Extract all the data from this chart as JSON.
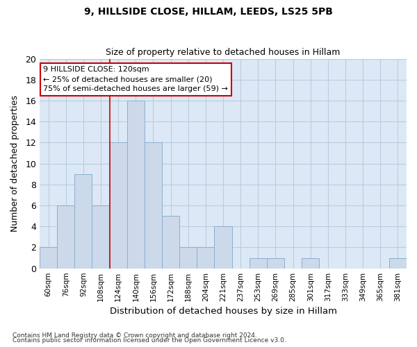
{
  "title1": "9, HILLSIDE CLOSE, HILLAM, LEEDS, LS25 5PB",
  "title2": "Size of property relative to detached houses in Hillam",
  "xlabel": "Distribution of detached houses by size in Hillam",
  "ylabel": "Number of detached properties",
  "categories": [
    "60sqm",
    "76sqm",
    "92sqm",
    "108sqm",
    "124sqm",
    "140sqm",
    "156sqm",
    "172sqm",
    "188sqm",
    "204sqm",
    "221sqm",
    "237sqm",
    "253sqm",
    "269sqm",
    "285sqm",
    "301sqm",
    "317sqm",
    "333sqm",
    "349sqm",
    "365sqm",
    "381sqm"
  ],
  "values": [
    2,
    6,
    9,
    6,
    12,
    16,
    12,
    5,
    2,
    2,
    4,
    0,
    1,
    1,
    0,
    1,
    0,
    0,
    0,
    0,
    1
  ],
  "bar_color": "#ccd9ea",
  "bar_edgecolor": "#8ab0d0",
  "grid_color": "#b8cde0",
  "bg_color": "#dce8f5",
  "redline_index": 4,
  "redline_color": "#cc0000",
  "annotation_line1": "9 HILLSIDE CLOSE: 120sqm",
  "annotation_line2": "← 25% of detached houses are smaller (20)",
  "annotation_line3": "75% of semi-detached houses are larger (59) →",
  "annotation_box_color": "#ffffff",
  "annotation_box_edgecolor": "#cc0000",
  "footer1": "Contains HM Land Registry data © Crown copyright and database right 2024.",
  "footer2": "Contains public sector information licensed under the Open Government Licence v3.0.",
  "ylim": [
    0,
    20
  ],
  "yticks": [
    0,
    2,
    4,
    6,
    8,
    10,
    12,
    14,
    16,
    18,
    20
  ]
}
